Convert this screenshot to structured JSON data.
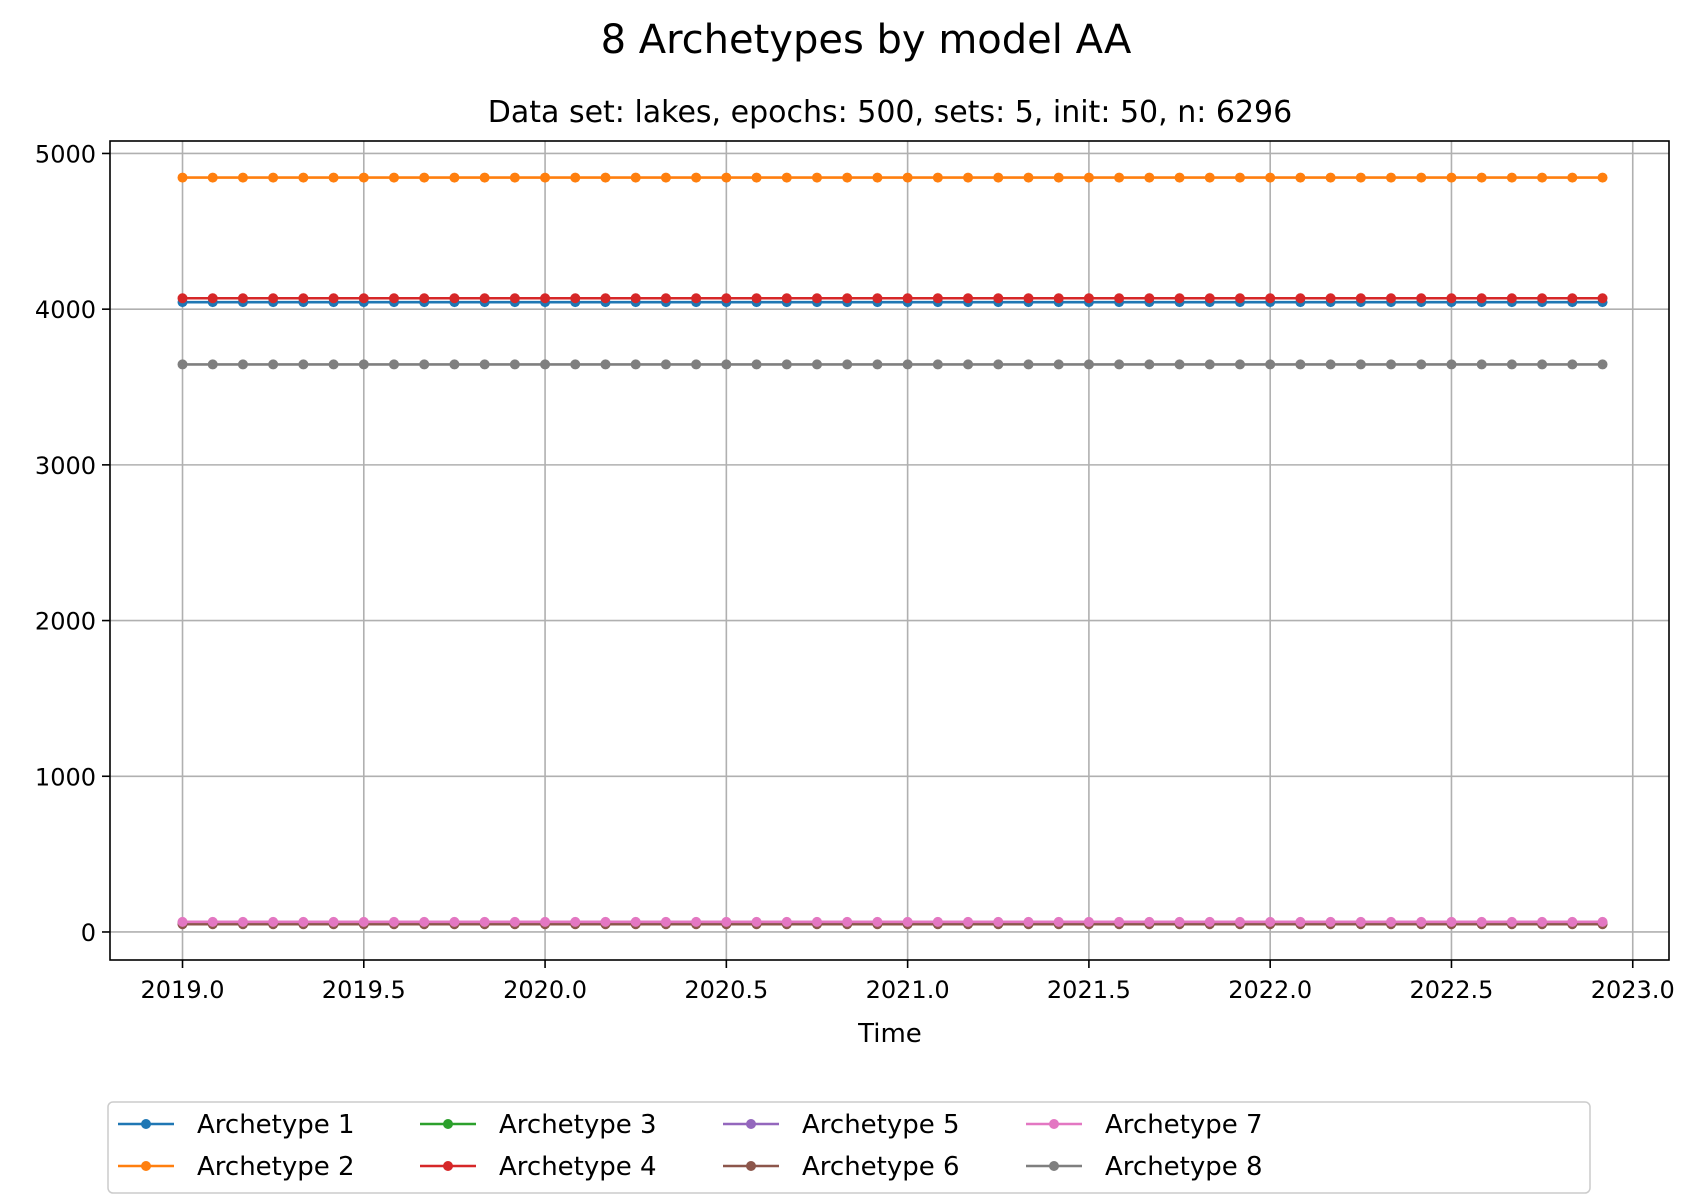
{
  "chart_data": {
    "type": "line",
    "title": "8 Archetypes by model AA",
    "subtitle": "Data set: lakes, epochs: 500, sets: 5, init: 50, n: 6296",
    "xlabel": "Time",
    "ylabel": "",
    "xlim": [
      2018.8,
      2023.1
    ],
    "ylim": [
      -180,
      5080
    ],
    "xticks": [
      2019.0,
      2019.5,
      2020.0,
      2020.5,
      2021.0,
      2021.5,
      2022.0,
      2022.5,
      2023.0
    ],
    "xtick_labels": [
      "2019.0",
      "2019.5",
      "2020.0",
      "2020.5",
      "2021.0",
      "2021.5",
      "2022.0",
      "2022.5",
      "2023.0"
    ],
    "yticks": [
      0,
      1000,
      2000,
      3000,
      4000,
      5000
    ],
    "ytick_labels": [
      "0",
      "1000",
      "2000",
      "3000",
      "4000",
      "5000"
    ],
    "grid": true,
    "legend_position": "bottom-center, below axes",
    "legend_columns": 5,
    "x_start": 2019.0,
    "x_step_months": 1,
    "n_points": 48,
    "series": [
      {
        "name": "Archetype 1",
        "color": "#1f77b4",
        "value": 4045
      },
      {
        "name": "Archetype 2",
        "color": "#ff7f0e",
        "value": 4845
      },
      {
        "name": "Archetype 3",
        "color": "#2ca02c",
        "value": 60
      },
      {
        "name": "Archetype 4",
        "color": "#d62728",
        "value": 4070
      },
      {
        "name": "Archetype 5",
        "color": "#9467bd",
        "value": 55
      },
      {
        "name": "Archetype 6",
        "color": "#8c564b",
        "value": 50
      },
      {
        "name": "Archetype 7",
        "color": "#e377c2",
        "value": 65
      },
      {
        "name": "Archetype 8",
        "color": "#7f7f7f",
        "value": 3645
      }
    ]
  }
}
